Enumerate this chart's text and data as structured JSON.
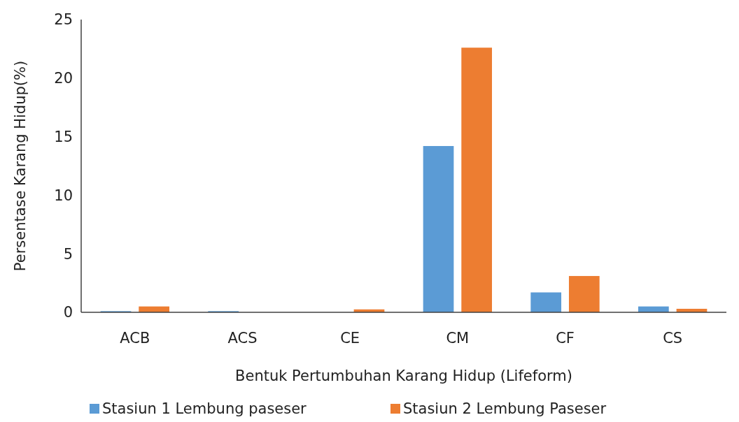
{
  "chart_data": {
    "type": "bar",
    "xlabel": "Bentuk Pertumbuhan Karang Hidup (Lifeform)",
    "ylabel": "Persentase Karang Hidup(%)",
    "categories": [
      "ACB",
      "ACS",
      "CE",
      "CM",
      "CF",
      "CS"
    ],
    "series": [
      {
        "name": "Stasiun 1 Lembung paseser",
        "color": "#5b9bd5",
        "values": [
          0.1,
          0.1,
          0,
          14.2,
          1.7,
          0.5
        ]
      },
      {
        "name": "Stasiun 2 Lembung Paseser",
        "color": "#ed7d31",
        "values": [
          0.5,
          0,
          0.25,
          22.6,
          3.1,
          0.3
        ]
      }
    ],
    "ylim": [
      0,
      25
    ],
    "yticks": [
      0,
      5,
      10,
      15,
      20,
      25
    ],
    "grid": false,
    "legend": "bottom"
  }
}
